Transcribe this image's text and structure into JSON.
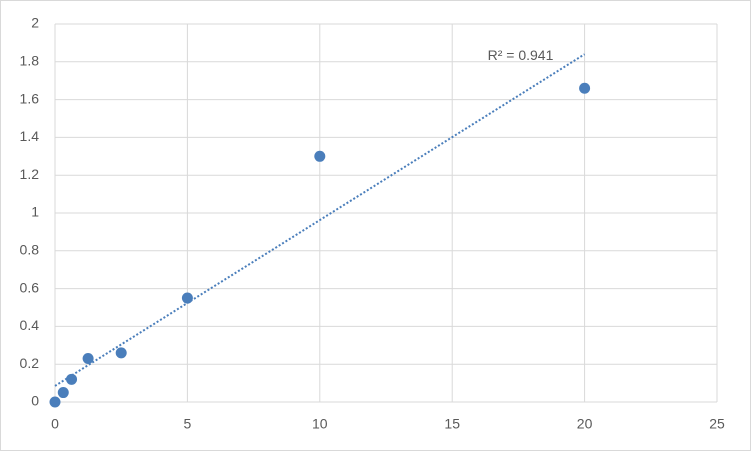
{
  "chart_data": {
    "type": "scatter",
    "x": [
      0,
      0.3125,
      0.625,
      1.25,
      2.5,
      5,
      10,
      20
    ],
    "values": [
      0,
      0.05,
      0.12,
      0.23,
      0.26,
      0.55,
      1.3,
      1.66
    ],
    "color": "#4a7ebb",
    "xlim": [
      0,
      25
    ],
    "xticks": [
      0,
      5,
      10,
      15,
      20,
      25
    ],
    "ylim": [
      0,
      2
    ],
    "yticks": [
      0,
      0.2,
      0.4,
      0.6,
      0.8,
      1,
      1.2,
      1.4,
      1.6,
      1.8,
      2
    ],
    "grid": true,
    "trendline": {
      "x": [
        0,
        20
      ],
      "values": [
        0.085,
        1.84
      ],
      "label": "R² = 0.941"
    }
  }
}
